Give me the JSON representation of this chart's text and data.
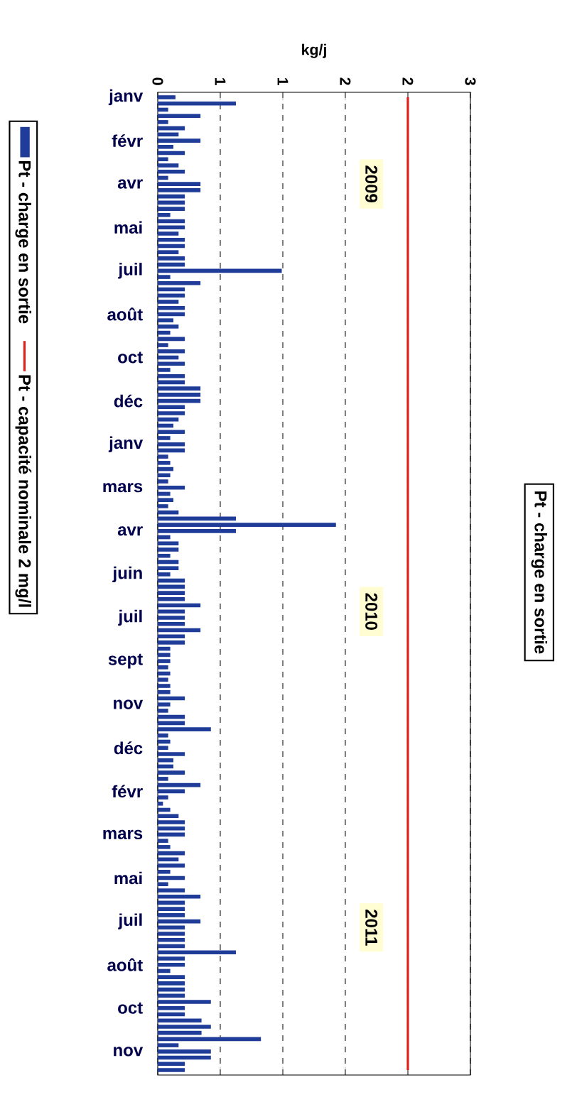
{
  "chart_data": {
    "type": "bar",
    "orientation": "horizontal",
    "title": "Pt - charge en sortie",
    "xlabel": "kg/j",
    "categories": [
      "janv",
      null,
      null,
      null,
      null,
      null,
      null,
      "févr",
      null,
      null,
      null,
      null,
      null,
      null,
      "avr",
      null,
      null,
      null,
      null,
      null,
      null,
      "mai",
      null,
      null,
      null,
      null,
      null,
      null,
      "juil",
      null,
      null,
      null,
      null,
      null,
      null,
      "août",
      null,
      null,
      null,
      null,
      null,
      null,
      "oct",
      null,
      null,
      null,
      null,
      null,
      null,
      "déc",
      null,
      null,
      null,
      null,
      null,
      null,
      "janv",
      null,
      null,
      null,
      null,
      null,
      null,
      "mars",
      null,
      null,
      null,
      null,
      null,
      null,
      "avr",
      null,
      null,
      null,
      null,
      null,
      null,
      "juin",
      null,
      null,
      null,
      null,
      null,
      null,
      "juil",
      null,
      null,
      null,
      null,
      null,
      null,
      "sept",
      null,
      null,
      null,
      null,
      null,
      null,
      "nov",
      null,
      null,
      null,
      null,
      null,
      null,
      "déc",
      null,
      null,
      null,
      null,
      null,
      null,
      "févr",
      null,
      null,
      null,
      null,
      null,
      null,
      "mars",
      null,
      null,
      null,
      null,
      null,
      null,
      "mai",
      null,
      null,
      null,
      null,
      null,
      null,
      "juil",
      null,
      null,
      null,
      null,
      null,
      null,
      "août",
      null,
      null,
      null,
      null,
      null,
      null,
      "oct",
      null,
      null,
      null,
      null,
      null,
      null,
      "nov",
      null,
      null,
      null
    ],
    "series": [
      {
        "name": "Pt - charge en sortie",
        "type": "bar",
        "color": "#1f3c99",
        "values": [
          0.17,
          0.75,
          0.1,
          0.41,
          0.1,
          0.26,
          0.2,
          0.41,
          0.15,
          0.26,
          0.1,
          0.2,
          0.26,
          0.1,
          0.41,
          0.41,
          0.26,
          0.26,
          0.26,
          0.12,
          0.26,
          0.26,
          0.2,
          0.26,
          0.26,
          0.2,
          0.26,
          0.26,
          1.19,
          0.12,
          0.41,
          0.26,
          0.26,
          0.2,
          0.26,
          0.26,
          0.15,
          0.2,
          0.12,
          0.26,
          0.1,
          0.26,
          0.2,
          0.26,
          0.12,
          0.26,
          0.26,
          0.41,
          0.41,
          0.41,
          0.26,
          0.26,
          0.2,
          0.15,
          0.26,
          0.12,
          0.26,
          0.26,
          0.1,
          0.12,
          0.15,
          0.12,
          0.1,
          0.26,
          0.12,
          0.15,
          0.1,
          0.2,
          0.75,
          1.71,
          0.75,
          0.12,
          0.2,
          0.2,
          0.12,
          0.2,
          0.2,
          0.12,
          0.26,
          0.26,
          0.26,
          0.26,
          0.41,
          0.26,
          0.26,
          0.26,
          0.41,
          0.26,
          0.26,
          0.12,
          0.12,
          0.12,
          0.1,
          0.12,
          0.1,
          0.12,
          0.12,
          0.26,
          0.12,
          0.1,
          0.26,
          0.26,
          0.51,
          0.1,
          0.12,
          0.1,
          0.26,
          0.15,
          0.15,
          0.26,
          0.1,
          0.41,
          0.26,
          0.1,
          0.05,
          0.12,
          0.2,
          0.26,
          0.26,
          0.26,
          0.1,
          0.12,
          0.26,
          0.2,
          0.26,
          0.12,
          0.26,
          0.1,
          0.26,
          0.41,
          0.26,
          0.26,
          0.26,
          0.41,
          0.26,
          0.26,
          0.26,
          0.26,
          0.75,
          0.26,
          0.26,
          0.12,
          0.26,
          0.26,
          0.26,
          0.26,
          0.51,
          0.26,
          0.26,
          0.42,
          0.51,
          0.42,
          0.99,
          0.2,
          0.51,
          0.51,
          0.26,
          0.26
        ]
      },
      {
        "name": "Pt - capacité nominale 2 mg/l",
        "type": "line",
        "color": "#e0201b",
        "values": [
          2.4,
          2.4,
          2.4,
          2.4,
          2.4,
          2.4,
          2.4,
          2.4,
          2.4,
          2.4,
          2.4,
          2.4,
          2.4,
          2.4,
          2.4,
          2.4,
          2.4,
          2.4,
          2.4,
          2.4,
          2.4,
          2.4,
          2.4,
          2.4,
          2.4,
          2.4,
          2.4,
          2.4,
          2.4,
          2.4,
          2.4,
          2.4,
          2.4,
          2.4,
          2.4,
          2.4,
          2.4,
          2.4,
          2.4,
          2.4,
          2.4,
          2.4,
          2.4,
          2.4,
          2.4,
          2.4,
          2.4,
          2.4,
          2.4,
          2.4,
          2.4,
          2.4,
          2.4,
          2.4,
          2.4,
          2.4,
          2.4,
          2.4,
          2.4,
          2.4,
          2.4,
          2.4,
          2.4,
          2.4,
          2.4,
          2.4,
          2.4,
          2.4,
          2.4,
          2.4,
          2.4,
          2.4,
          2.4,
          2.4,
          2.4,
          2.4,
          2.4,
          2.4,
          2.4,
          2.4,
          2.4,
          2.4,
          2.4,
          2.4,
          2.4,
          2.4,
          2.4,
          2.4,
          2.4,
          2.4,
          2.4,
          2.4,
          2.4,
          2.4,
          2.4,
          2.4,
          2.4,
          2.4,
          2.4,
          2.4,
          2.4,
          2.4,
          2.4,
          2.4,
          2.4,
          2.4,
          2.4,
          2.4,
          2.4,
          2.4,
          2.4,
          2.4,
          2.4,
          2.4,
          2.4,
          2.4,
          2.4,
          2.4,
          2.4,
          2.4,
          2.4,
          2.4,
          2.4,
          2.4,
          2.4,
          2.4,
          2.4,
          2.4,
          2.4,
          2.4,
          2.4,
          2.4,
          2.4,
          2.4,
          2.4,
          2.4,
          2.4,
          2.4,
          2.4,
          2.4,
          2.4,
          2.4,
          2.4,
          2.4,
          2.4,
          2.4,
          2.4,
          2.4,
          2.4,
          2.4,
          2.4,
          2.4,
          2.4,
          2.4,
          2.4,
          2.4,
          2.4,
          2.4
        ]
      }
    ],
    "xlim": [
      0,
      3
    ],
    "xticks": [
      0,
      {
        "value": 0.6,
        "label": "1"
      },
      {
        "value": 1.2,
        "label": "1"
      },
      {
        "value": 1.8,
        "label": "2"
      },
      {
        "value": 2.4,
        "label": "2"
      },
      3
    ],
    "grid": "x",
    "legend": "left",
    "annotations": [
      "2009",
      "2010",
      "2011"
    ]
  }
}
